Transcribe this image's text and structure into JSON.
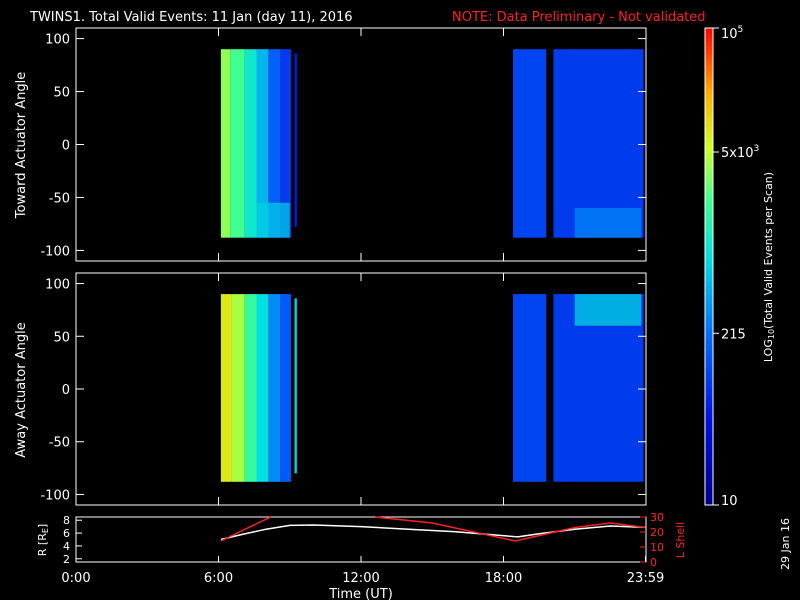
{
  "header": {
    "title": "TWINS1. Total Valid Events: 11 Jan (day  11), 2016",
    "note": "NOTE: Data Preliminary - Not validated",
    "note_color": "#ff2020"
  },
  "footer": {
    "date_stamp": "29 Jan 16"
  },
  "chart_data": [
    {
      "type": "heatmap",
      "panel": "toward",
      "ylabel": "Toward Actuator Angle",
      "ylim": [
        -110,
        110
      ],
      "yticks": [
        100,
        50,
        0,
        -50,
        -100
      ],
      "ytick_labels": [
        "100",
        "50",
        "0",
        "-50",
        "-100"
      ],
      "xlim_hours": [
        0,
        24
      ],
      "angle_range": [
        -88,
        90
      ],
      "segments": [
        {
          "start_h": 6.1,
          "end_h": 6.5,
          "level": 0.7
        },
        {
          "start_h": 6.5,
          "end_h": 7.1,
          "level": 0.64
        },
        {
          "start_h": 7.1,
          "end_h": 7.6,
          "level": 0.55
        },
        {
          "start_h": 7.6,
          "end_h": 8.1,
          "level": 0.46
        },
        {
          "start_h": 8.1,
          "end_h": 8.6,
          "level": 0.33
        },
        {
          "start_h": 8.6,
          "end_h": 9.05,
          "level": 0.26
        },
        {
          "start_h": 9.2,
          "end_h": 9.3,
          "level": 0.2,
          "top": 86,
          "bottom": -78
        },
        {
          "start_h": 18.4,
          "end_h": 19.8,
          "level": 0.28
        },
        {
          "start_h": 20.1,
          "end_h": 23.9,
          "level": 0.26
        }
      ],
      "hotspots": [
        {
          "start_h": 7.6,
          "end_h": 9.0,
          "from_angle": -88,
          "to_angle": -55,
          "level": 0.5
        },
        {
          "start_h": 21.0,
          "end_h": 23.8,
          "from_angle": -88,
          "to_angle": -60,
          "level": 0.4
        }
      ]
    },
    {
      "type": "heatmap",
      "panel": "away",
      "ylabel": "Away Actuator Angle",
      "ylim": [
        -110,
        110
      ],
      "yticks": [
        100,
        50,
        0,
        -50,
        -100
      ],
      "ytick_labels": [
        "100",
        "50",
        "0",
        "-50",
        "-100"
      ],
      "xlim_hours": [
        0,
        24
      ],
      "angle_range": [
        -88,
        90
      ],
      "segments": [
        {
          "start_h": 6.1,
          "end_h": 6.55,
          "level": 0.78
        },
        {
          "start_h": 6.55,
          "end_h": 7.1,
          "level": 0.72
        },
        {
          "start_h": 7.1,
          "end_h": 7.6,
          "level": 0.62
        },
        {
          "start_h": 7.6,
          "end_h": 8.1,
          "level": 0.52
        },
        {
          "start_h": 8.1,
          "end_h": 8.6,
          "level": 0.4
        },
        {
          "start_h": 8.6,
          "end_h": 9.05,
          "level": 0.32
        },
        {
          "start_h": 9.2,
          "end_h": 9.3,
          "level": 0.5,
          "top": 86,
          "bottom": -80
        },
        {
          "start_h": 18.4,
          "end_h": 19.8,
          "level": 0.28
        },
        {
          "start_h": 20.1,
          "end_h": 23.9,
          "level": 0.26
        }
      ],
      "hotspots": [
        {
          "start_h": 21.0,
          "end_h": 23.8,
          "from_angle": 60,
          "to_angle": 90,
          "level": 0.52
        }
      ]
    },
    {
      "type": "line",
      "panel": "orbit",
      "ylabel": "R [R",
      "ylabel_sub": "E",
      "ylabel_close": "]",
      "ylim": [
        1.5,
        8.5
      ],
      "yticks": [
        2,
        4,
        6,
        8
      ],
      "ytick_labels": [
        "2",
        "4",
        "6",
        "8"
      ],
      "y2label": "L Shell",
      "y2lim": [
        0,
        30
      ],
      "y2ticks": [
        0,
        10,
        20,
        30
      ],
      "y2tick_labels": [
        "0",
        "10",
        "20",
        "30"
      ],
      "xlim_hours": [
        0,
        24
      ],
      "xticks": [
        0,
        6,
        12,
        18,
        23.98
      ],
      "xtick_labels": [
        "0:00",
        "6:00",
        "12:00",
        "18:00",
        "23:59"
      ],
      "xlabel": "Time (UT)",
      "series": [
        {
          "axis": "left",
          "color": "#ffffff",
          "points": [
            [
              6.1,
              5.0
            ],
            [
              7,
              5.8
            ],
            [
              8,
              6.6
            ],
            [
              9,
              7.2
            ],
            [
              10,
              7.25
            ],
            [
              12,
              7.0
            ],
            [
              14,
              6.6
            ],
            [
              16,
              6.2
            ],
            [
              17,
              5.9
            ],
            [
              18.6,
              5.4
            ],
            [
              19.5,
              5.9
            ],
            [
              21,
              6.6
            ],
            [
              22.5,
              7.1
            ],
            [
              23.98,
              6.9
            ]
          ]
        },
        {
          "axis": "right",
          "color": "#ff2020",
          "points": [
            [
              6.1,
              14
            ],
            [
              7,
              21
            ],
            [
              8.2,
              31
            ]
          ],
          "points2": [
            [
              12.6,
              31
            ],
            [
              15,
              26
            ],
            [
              18.5,
              14
            ],
            [
              21,
              23
            ],
            [
              22.5,
              26
            ],
            [
              23.98,
              23
            ]
          ]
        }
      ]
    }
  ],
  "colorbar": {
    "label_main": "LOG",
    "label_sub": "10",
    "label_rest": "(Total Valid  Events per Scan)",
    "tick_labels": [
      {
        "text": "10",
        "sup": "5",
        "level": 1.0
      },
      {
        "text": "5x10",
        "sup": "3",
        "level": 0.74
      },
      {
        "text": "215",
        "sup": "",
        "level": 0.36
      },
      {
        "text": "10",
        "sup": "",
        "level": 0.0
      }
    ]
  }
}
